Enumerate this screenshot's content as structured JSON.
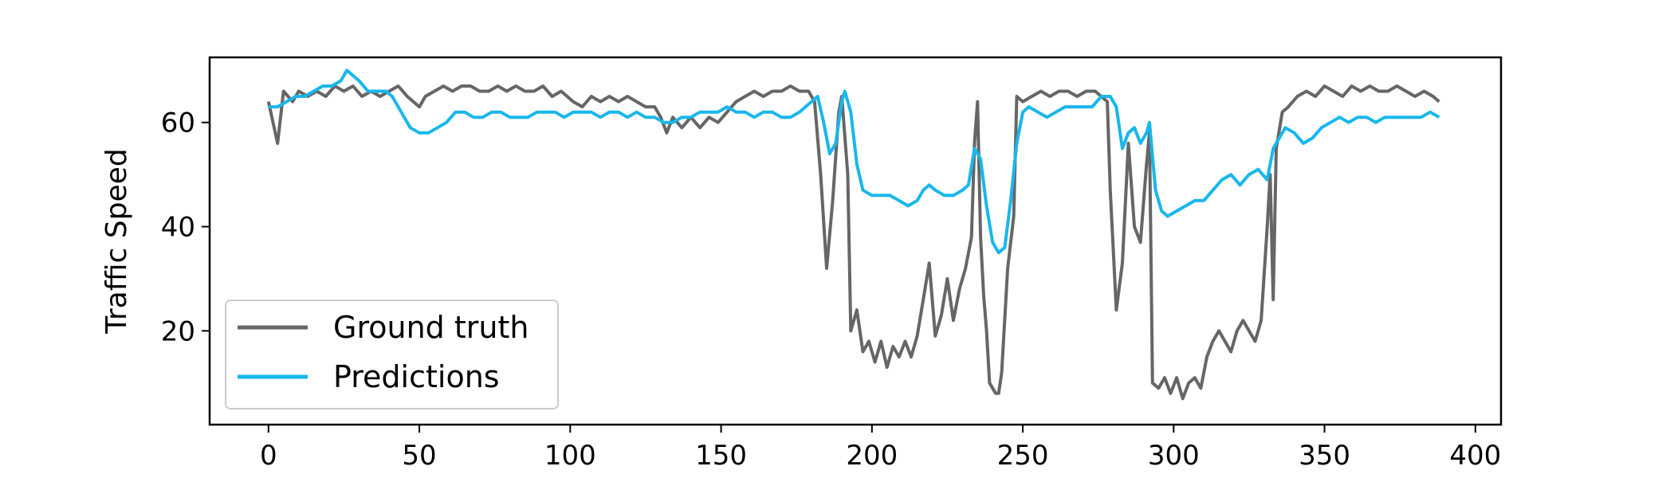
{
  "chart_data": {
    "type": "line",
    "title": "",
    "xlabel": "",
    "ylabel": "Traffic Speed",
    "xlim": [
      -19.5,
      408.5
    ],
    "ylim": [
      2,
      72.5
    ],
    "xticks": [
      0,
      50,
      100,
      150,
      200,
      250,
      300,
      350,
      400
    ],
    "yticks": [
      20,
      40,
      60
    ],
    "grid": false,
    "legend_position": "lower-left",
    "series": [
      {
        "name": "Ground truth",
        "color": "#666666",
        "points": [
          [
            0,
            64
          ],
          [
            3,
            56
          ],
          [
            5,
            66
          ],
          [
            8,
            64
          ],
          [
            10,
            66
          ],
          [
            13,
            65
          ],
          [
            16,
            66
          ],
          [
            19,
            65
          ],
          [
            22,
            67
          ],
          [
            25,
            66
          ],
          [
            28,
            67
          ],
          [
            31,
            65
          ],
          [
            34,
            66
          ],
          [
            37,
            65
          ],
          [
            40,
            66
          ],
          [
            43,
            67
          ],
          [
            46,
            65
          ],
          [
            48,
            64
          ],
          [
            50,
            63
          ],
          [
            52,
            65
          ],
          [
            55,
            66
          ],
          [
            58,
            67
          ],
          [
            61,
            66
          ],
          [
            64,
            67
          ],
          [
            67,
            67
          ],
          [
            70,
            66
          ],
          [
            73,
            66
          ],
          [
            76,
            67
          ],
          [
            79,
            66
          ],
          [
            82,
            67
          ],
          [
            85,
            66
          ],
          [
            88,
            66
          ],
          [
            91,
            67
          ],
          [
            94,
            65
          ],
          [
            97,
            66
          ],
          [
            99,
            65
          ],
          [
            101,
            64
          ],
          [
            104,
            63
          ],
          [
            107,
            65
          ],
          [
            110,
            64
          ],
          [
            113,
            65
          ],
          [
            116,
            64
          ],
          [
            119,
            65
          ],
          [
            122,
            64
          ],
          [
            125,
            63
          ],
          [
            128,
            63
          ],
          [
            130,
            61
          ],
          [
            132,
            58
          ],
          [
            134,
            61
          ],
          [
            137,
            59
          ],
          [
            140,
            61
          ],
          [
            143,
            59
          ],
          [
            146,
            61
          ],
          [
            149,
            60
          ],
          [
            152,
            62
          ],
          [
            155,
            64
          ],
          [
            158,
            65
          ],
          [
            161,
            66
          ],
          [
            164,
            65
          ],
          [
            167,
            66
          ],
          [
            170,
            66
          ],
          [
            173,
            67
          ],
          [
            176,
            66
          ],
          [
            179,
            66
          ],
          [
            181,
            64
          ],
          [
            183,
            50
          ],
          [
            185,
            32
          ],
          [
            187,
            45
          ],
          [
            189,
            62
          ],
          [
            190,
            65
          ],
          [
            192,
            50
          ],
          [
            193,
            20
          ],
          [
            195,
            24
          ],
          [
            197,
            16
          ],
          [
            199,
            18
          ],
          [
            201,
            14
          ],
          [
            203,
            18
          ],
          [
            205,
            13
          ],
          [
            207,
            17
          ],
          [
            209,
            15
          ],
          [
            211,
            18
          ],
          [
            213,
            15
          ],
          [
            215,
            19
          ],
          [
            217,
            26
          ],
          [
            219,
            33
          ],
          [
            221,
            19
          ],
          [
            223,
            23
          ],
          [
            225,
            30
          ],
          [
            227,
            22
          ],
          [
            229,
            28
          ],
          [
            231,
            32
          ],
          [
            233,
            38
          ],
          [
            234,
            56
          ],
          [
            235,
            64
          ],
          [
            236,
            38
          ],
          [
            237,
            27
          ],
          [
            238,
            20
          ],
          [
            239,
            10
          ],
          [
            241,
            8
          ],
          [
            242,
            8
          ],
          [
            243,
            12
          ],
          [
            245,
            32
          ],
          [
            247,
            42
          ],
          [
            248,
            65
          ],
          [
            250,
            64
          ],
          [
            253,
            65
          ],
          [
            256,
            66
          ],
          [
            259,
            65
          ],
          [
            262,
            66
          ],
          [
            265,
            66
          ],
          [
            268,
            65
          ],
          [
            271,
            66
          ],
          [
            274,
            66
          ],
          [
            276,
            65
          ],
          [
            278,
            64
          ],
          [
            279,
            47
          ],
          [
            281,
            24
          ],
          [
            283,
            33
          ],
          [
            285,
            56
          ],
          [
            287,
            40
          ],
          [
            289,
            37
          ],
          [
            291,
            52
          ],
          [
            292,
            58
          ],
          [
            293,
            10
          ],
          [
            295,
            9
          ],
          [
            297,
            11
          ],
          [
            299,
            8
          ],
          [
            301,
            11
          ],
          [
            303,
            7
          ],
          [
            305,
            10
          ],
          [
            307,
            11
          ],
          [
            309,
            9
          ],
          [
            311,
            15
          ],
          [
            313,
            18
          ],
          [
            315,
            20
          ],
          [
            317,
            18
          ],
          [
            319,
            16
          ],
          [
            321,
            20
          ],
          [
            323,
            22
          ],
          [
            325,
            20
          ],
          [
            327,
            18
          ],
          [
            329,
            22
          ],
          [
            331,
            40
          ],
          [
            332,
            50
          ],
          [
            333,
            26
          ],
          [
            334,
            55
          ],
          [
            336,
            62
          ],
          [
            338,
            63
          ],
          [
            341,
            65
          ],
          [
            344,
            66
          ],
          [
            347,
            65
          ],
          [
            350,
            67
          ],
          [
            353,
            66
          ],
          [
            356,
            65
          ],
          [
            359,
            67
          ],
          [
            362,
            66
          ],
          [
            365,
            67
          ],
          [
            368,
            66
          ],
          [
            371,
            66
          ],
          [
            374,
            67
          ],
          [
            377,
            66
          ],
          [
            380,
            65
          ],
          [
            383,
            66
          ],
          [
            386,
            65
          ],
          [
            388,
            64
          ]
        ]
      },
      {
        "name": "Predictions",
        "color": "#18b7ec",
        "points": [
          [
            0,
            63
          ],
          [
            3,
            63
          ],
          [
            6,
            64
          ],
          [
            9,
            65
          ],
          [
            12,
            65
          ],
          [
            15,
            66
          ],
          [
            18,
            67
          ],
          [
            21,
            67
          ],
          [
            24,
            68
          ],
          [
            26,
            70
          ],
          [
            28,
            69
          ],
          [
            30,
            68
          ],
          [
            33,
            66
          ],
          [
            36,
            66
          ],
          [
            39,
            66
          ],
          [
            41,
            65
          ],
          [
            43,
            63
          ],
          [
            45,
            61
          ],
          [
            47,
            59
          ],
          [
            50,
            58
          ],
          [
            53,
            58
          ],
          [
            56,
            59
          ],
          [
            59,
            60
          ],
          [
            62,
            62
          ],
          [
            65,
            62
          ],
          [
            68,
            61
          ],
          [
            71,
            61
          ],
          [
            74,
            62
          ],
          [
            77,
            62
          ],
          [
            80,
            61
          ],
          [
            83,
            61
          ],
          [
            86,
            61
          ],
          [
            89,
            62
          ],
          [
            92,
            62
          ],
          [
            95,
            62
          ],
          [
            98,
            61
          ],
          [
            101,
            62
          ],
          [
            104,
            62
          ],
          [
            107,
            62
          ],
          [
            110,
            61
          ],
          [
            113,
            62
          ],
          [
            116,
            62
          ],
          [
            119,
            61
          ],
          [
            122,
            62
          ],
          [
            125,
            61
          ],
          [
            128,
            61
          ],
          [
            131,
            60
          ],
          [
            134,
            60
          ],
          [
            137,
            61
          ],
          [
            140,
            61
          ],
          [
            143,
            62
          ],
          [
            146,
            62
          ],
          [
            149,
            62
          ],
          [
            152,
            63
          ],
          [
            155,
            62
          ],
          [
            158,
            62
          ],
          [
            161,
            61
          ],
          [
            164,
            62
          ],
          [
            167,
            62
          ],
          [
            170,
            61
          ],
          [
            173,
            61
          ],
          [
            176,
            62
          ],
          [
            178,
            63
          ],
          [
            180,
            64
          ],
          [
            182,
            65
          ],
          [
            184,
            60
          ],
          [
            186,
            54
          ],
          [
            188,
            56
          ],
          [
            190,
            64
          ],
          [
            191,
            66
          ],
          [
            193,
            62
          ],
          [
            195,
            52
          ],
          [
            197,
            47
          ],
          [
            200,
            46
          ],
          [
            203,
            46
          ],
          [
            206,
            46
          ],
          [
            209,
            45
          ],
          [
            212,
            44
          ],
          [
            215,
            45
          ],
          [
            217,
            47
          ],
          [
            219,
            48
          ],
          [
            221,
            47
          ],
          [
            224,
            46
          ],
          [
            227,
            46
          ],
          [
            230,
            47
          ],
          [
            232,
            48
          ],
          [
            234,
            55
          ],
          [
            236,
            53
          ],
          [
            238,
            44
          ],
          [
            240,
            37
          ],
          [
            242,
            35
          ],
          [
            244,
            36
          ],
          [
            246,
            45
          ],
          [
            248,
            56
          ],
          [
            250,
            62
          ],
          [
            252,
            63
          ],
          [
            255,
            62
          ],
          [
            258,
            61
          ],
          [
            261,
            62
          ],
          [
            264,
            63
          ],
          [
            267,
            63
          ],
          [
            270,
            63
          ],
          [
            273,
            63
          ],
          [
            276,
            65
          ],
          [
            279,
            65
          ],
          [
            281,
            63
          ],
          [
            283,
            55
          ],
          [
            285,
            58
          ],
          [
            287,
            59
          ],
          [
            289,
            56
          ],
          [
            291,
            58
          ],
          [
            292,
            60
          ],
          [
            294,
            47
          ],
          [
            296,
            43
          ],
          [
            298,
            42
          ],
          [
            301,
            43
          ],
          [
            304,
            44
          ],
          [
            307,
            45
          ],
          [
            310,
            45
          ],
          [
            313,
            47
          ],
          [
            316,
            49
          ],
          [
            319,
            50
          ],
          [
            322,
            48
          ],
          [
            325,
            50
          ],
          [
            328,
            51
          ],
          [
            331,
            49
          ],
          [
            333,
            55
          ],
          [
            335,
            57
          ],
          [
            337,
            59
          ],
          [
            340,
            58
          ],
          [
            343,
            56
          ],
          [
            346,
            57
          ],
          [
            349,
            59
          ],
          [
            352,
            60
          ],
          [
            355,
            61
          ],
          [
            358,
            60
          ],
          [
            361,
            61
          ],
          [
            364,
            61
          ],
          [
            367,
            60
          ],
          [
            370,
            61
          ],
          [
            373,
            61
          ],
          [
            376,
            61
          ],
          [
            379,
            61
          ],
          [
            382,
            61
          ],
          [
            385,
            62
          ],
          [
            388,
            61
          ]
        ]
      }
    ]
  }
}
